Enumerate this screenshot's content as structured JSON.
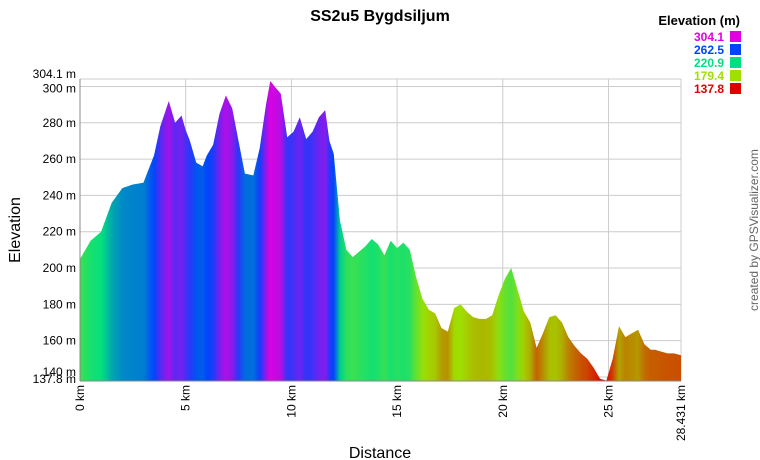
{
  "chart_data": {
    "type": "area",
    "title": "SS2u5 Bygdsiljum",
    "xlabel": "Distance",
    "ylabel": "Elevation",
    "xlim": [
      0,
      28.431
    ],
    "ylim": [
      137.8,
      304.1
    ],
    "grid": true,
    "x_ticks": [
      {
        "value": 0,
        "label": "0 km"
      },
      {
        "value": 5,
        "label": "5 km"
      },
      {
        "value": 10,
        "label": "10 km"
      },
      {
        "value": 15,
        "label": "15 km"
      },
      {
        "value": 20,
        "label": "20 km"
      },
      {
        "value": 25,
        "label": "25 km"
      },
      {
        "value": 28.431,
        "label": "28.431 km"
      }
    ],
    "y_ticks": [
      {
        "value": 137.8,
        "label": "137.8 m"
      },
      {
        "value": 140,
        "label": "140 m"
      },
      {
        "value": 160,
        "label": "160 m"
      },
      {
        "value": 180,
        "label": "180 m"
      },
      {
        "value": 200,
        "label": "200 m"
      },
      {
        "value": 220,
        "label": "220 m"
      },
      {
        "value": 240,
        "label": "240 m"
      },
      {
        "value": 260,
        "label": "260 m"
      },
      {
        "value": 280,
        "label": "280 m"
      },
      {
        "value": 300,
        "label": "300 m"
      },
      {
        "value": 304.1,
        "label": "304.1 m"
      }
    ],
    "legend": {
      "title": "Elevation (m)",
      "placement": "top-right",
      "entries": [
        {
          "label": "304.1",
          "color": "#e000e0"
        },
        {
          "label": "262.5",
          "color": "#0044ff"
        },
        {
          "label": "220.9",
          "color": "#00e080"
        },
        {
          "label": "179.4",
          "color": "#a0e000"
        },
        {
          "label": "137.8",
          "color": "#e00000"
        }
      ]
    },
    "series": [
      {
        "x": [
          0,
          0.5,
          1.0,
          1.5,
          2.0,
          2.5,
          3.0,
          3.5,
          3.8,
          4.2,
          4.5,
          4.8,
          5.0,
          5.2,
          5.5,
          5.8,
          6.0,
          6.3,
          6.6,
          6.9,
          7.2,
          7.5,
          7.8,
          8.2,
          8.5,
          8.8,
          9.0,
          9.2,
          9.5,
          9.8,
          10.1,
          10.4,
          10.7,
          11.0,
          11.3,
          11.6,
          11.8,
          12.0,
          12.3,
          12.6,
          12.9,
          13.2,
          13.5,
          13.8,
          14.1,
          14.4,
          14.7,
          15.0,
          15.3,
          15.6,
          15.9,
          16.2,
          16.5,
          16.8,
          17.1,
          17.4,
          17.7,
          18.0,
          18.3,
          18.6,
          18.9,
          19.2,
          19.5,
          19.8,
          20.1,
          20.4,
          20.7,
          21.0,
          21.3,
          21.6,
          21.9,
          22.2,
          22.5,
          22.8,
          23.1,
          23.4,
          23.7,
          24.0,
          24.3,
          24.6,
          24.9,
          25.2,
          25.5,
          25.8,
          26.1,
          26.4,
          26.7,
          27.0,
          27.2,
          27.5,
          27.8,
          28.1,
          28.431
        ],
        "y": [
          205,
          215,
          220,
          236,
          244,
          246,
          247,
          262,
          278,
          292,
          280,
          284,
          276,
          270,
          258,
          256,
          262,
          268,
          285,
          295,
          288,
          270,
          252,
          251,
          266,
          290,
          303,
          300,
          296,
          272,
          275,
          283,
          271,
          275,
          283,
          287,
          270,
          263,
          226,
          210,
          206,
          209,
          212,
          216,
          213,
          207,
          215,
          211,
          214,
          210,
          195,
          183,
          177,
          175,
          167,
          165,
          178,
          180,
          176,
          173,
          172,
          172,
          174,
          185,
          194,
          200,
          188,
          176,
          170,
          156,
          164,
          173,
          174,
          170,
          162,
          157,
          153,
          150,
          145,
          139,
          138,
          150,
          168,
          162,
          164,
          166,
          158,
          155,
          155,
          154,
          153,
          153,
          152
        ]
      }
    ]
  },
  "credit": "created by GPSVisualizer.com"
}
